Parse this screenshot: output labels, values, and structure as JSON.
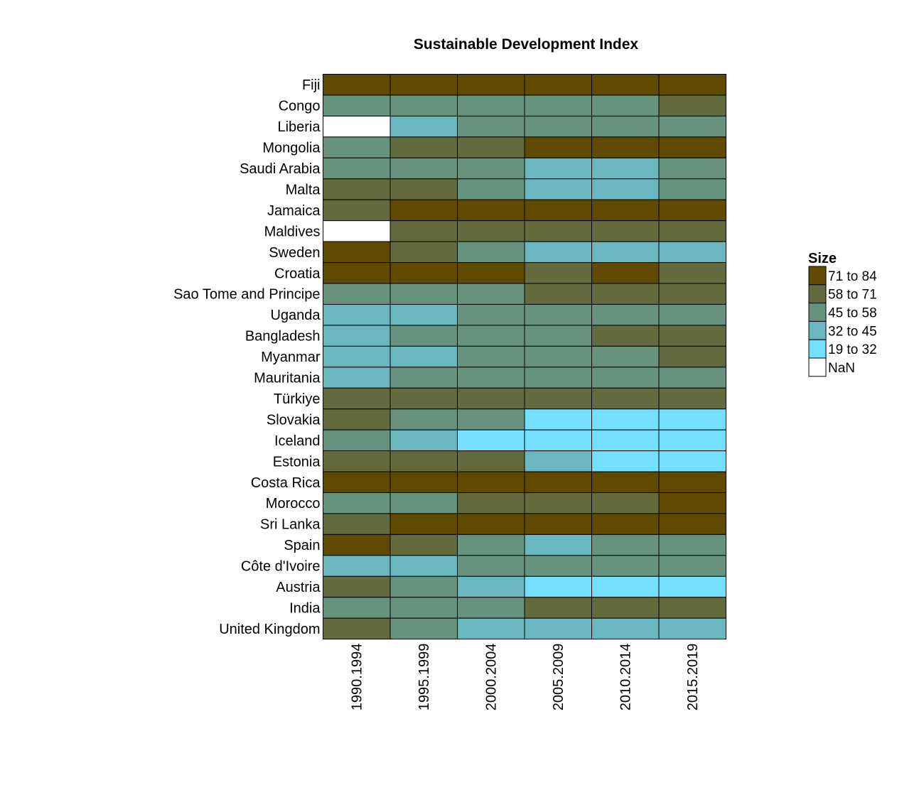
{
  "chart_data": {
    "type": "heatmap",
    "title": "Sustainable Development Index",
    "xlabel": "",
    "ylabel": "",
    "columns": [
      "1990.1994",
      "1995.1999",
      "2000.2004",
      "2005.2009",
      "2010.2014",
      "2015.2019"
    ],
    "rows": [
      "Fiji",
      "Congo",
      "Liberia",
      "Mongolia",
      "Saudi Arabia",
      "Malta",
      "Jamaica",
      "Maldives",
      "Sweden",
      "Croatia",
      "Sao Tome and Principe",
      "Uganda",
      "Bangladesh",
      "Myanmar",
      "Mauritania",
      "Türkiye",
      "Slovakia",
      "Iceland",
      "Estonia",
      "Costa Rica",
      "Morocco",
      "Sri Lanka",
      "Spain",
      "Côte d'Ivoire",
      "Austria",
      "India",
      "United Kingdom"
    ],
    "cell_bins": [
      [
        0,
        0,
        0,
        0,
        0,
        0
      ],
      [
        2,
        2,
        2,
        2,
        2,
        1
      ],
      [
        5,
        3,
        2,
        2,
        2,
        2
      ],
      [
        2,
        1,
        1,
        0,
        0,
        0
      ],
      [
        2,
        2,
        2,
        3,
        3,
        2
      ],
      [
        1,
        1,
        2,
        3,
        3,
        2
      ],
      [
        1,
        0,
        0,
        0,
        0,
        0
      ],
      [
        5,
        1,
        1,
        1,
        1,
        1
      ],
      [
        0,
        1,
        2,
        3,
        3,
        3
      ],
      [
        0,
        0,
        0,
        1,
        0,
        1
      ],
      [
        2,
        2,
        2,
        1,
        1,
        1
      ],
      [
        3,
        3,
        2,
        2,
        2,
        2
      ],
      [
        3,
        2,
        2,
        2,
        1,
        1
      ],
      [
        3,
        3,
        2,
        2,
        2,
        1
      ],
      [
        3,
        2,
        2,
        2,
        2,
        2
      ],
      [
        1,
        1,
        1,
        1,
        1,
        1
      ],
      [
        1,
        2,
        2,
        4,
        4,
        4
      ],
      [
        2,
        3,
        4,
        4,
        4,
        4
      ],
      [
        1,
        1,
        1,
        3,
        4,
        4
      ],
      [
        0,
        0,
        0,
        0,
        0,
        0
      ],
      [
        2,
        2,
        1,
        1,
        1,
        0
      ],
      [
        1,
        0,
        0,
        0,
        0,
        0
      ],
      [
        0,
        1,
        2,
        3,
        2,
        2
      ],
      [
        3,
        3,
        2,
        2,
        2,
        2
      ],
      [
        1,
        2,
        3,
        4,
        4,
        4
      ],
      [
        2,
        2,
        2,
        1,
        1,
        1
      ],
      [
        1,
        2,
        3,
        3,
        3,
        3
      ]
    ],
    "legend": {
      "title": "Size",
      "position": "right",
      "bins": [
        {
          "label": "71 to 84",
          "range": [
            71,
            84
          ],
          "color": "#5f4a00"
        },
        {
          "label": "58 to 71",
          "range": [
            58,
            71
          ],
          "color": "#636b3e"
        },
        {
          "label": "45 to 58",
          "range": [
            45,
            58
          ],
          "color": "#67937e"
        },
        {
          "label": "32 to 45",
          "range": [
            32,
            45
          ],
          "color": "#6bb7c0"
        },
        {
          "label": "19 to 32",
          "range": [
            19,
            32
          ],
          "color": "#75dfff"
        },
        {
          "label": "NaN",
          "range": null,
          "color": "#ffffff"
        }
      ]
    }
  }
}
